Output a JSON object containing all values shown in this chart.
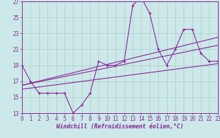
{
  "xlabel": "Windchill (Refroidissement éolien,°C)",
  "xlim": [
    0,
    23
  ],
  "ylim": [
    13,
    27
  ],
  "xticks": [
    0,
    1,
    2,
    3,
    4,
    5,
    6,
    7,
    8,
    9,
    10,
    11,
    12,
    13,
    14,
    15,
    16,
    17,
    18,
    19,
    20,
    21,
    22,
    23
  ],
  "yticks": [
    13,
    15,
    17,
    19,
    21,
    23,
    25,
    27
  ],
  "bg_color": "#cce8e8",
  "grid_color": "#aacccc",
  "line_color": "#882299",
  "main_series_x": [
    0,
    1,
    2,
    3,
    4,
    5,
    6,
    7,
    8,
    9,
    10,
    11,
    12,
    13,
    14,
    15,
    16,
    17,
    18,
    19,
    20,
    21,
    22,
    23
  ],
  "main_series_y": [
    19,
    17,
    15.5,
    15.5,
    15.5,
    15.5,
    13,
    14,
    15.5,
    19.5,
    19,
    19,
    19.5,
    26.5,
    27.5,
    25.5,
    21,
    19,
    21,
    23.5,
    23.5,
    20.5,
    19.5,
    19.5
  ],
  "trend_lines": [
    {
      "x0": 0,
      "y0": 16.0,
      "x1": 23,
      "y1": 19.2
    },
    {
      "x0": 0,
      "y0": 16.5,
      "x1": 23,
      "y1": 21.5
    },
    {
      "x0": 0,
      "y0": 16.5,
      "x1": 23,
      "y1": 22.5
    }
  ]
}
